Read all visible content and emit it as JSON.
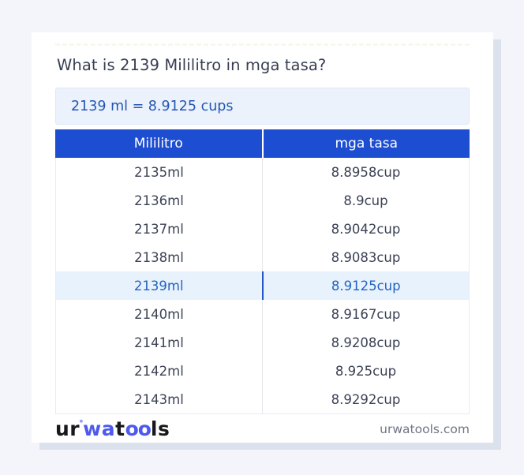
{
  "page_title": "What is 2139 Mililitro in mga tasa?",
  "conversion_result": "2139 ml = 8.9125 cups",
  "table": {
    "headers": [
      "Mililitro",
      "mga tasa"
    ],
    "rows": [
      {
        "ml": "2135ml",
        "cup": "8.8958cup",
        "highlight": false
      },
      {
        "ml": "2136ml",
        "cup": "8.9cup",
        "highlight": false
      },
      {
        "ml": "2137ml",
        "cup": "8.9042cup",
        "highlight": false
      },
      {
        "ml": "2138ml",
        "cup": "8.9083cup",
        "highlight": false
      },
      {
        "ml": "2139ml",
        "cup": "8.9125cup",
        "highlight": true
      },
      {
        "ml": "2140ml",
        "cup": "8.9167cup",
        "highlight": false
      },
      {
        "ml": "2141ml",
        "cup": "8.9208cup",
        "highlight": false
      },
      {
        "ml": "2142ml",
        "cup": "8.925cup",
        "highlight": false
      },
      {
        "ml": "2143ml",
        "cup": "8.9292cup",
        "highlight": false
      }
    ]
  },
  "footer": {
    "logo_ur": "ur",
    "logo_degree": "°",
    "logo_wa": "wa",
    "logo_t": "t",
    "logo_oo": "oo",
    "logo_ls": "ls",
    "site_url": "urwatools.com"
  },
  "colors": {
    "page_bg": "#f3f5fa",
    "header_blue": "#1d4ed1",
    "result_text_blue": "#2356b4",
    "result_bg": "#ebf2fc",
    "highlight_bg": "#e8f2fd",
    "highlight_text": "#2364c1",
    "row_text": "#3a4254",
    "logo_blue": "#4d59ef",
    "shadow": "#dce1ee"
  }
}
